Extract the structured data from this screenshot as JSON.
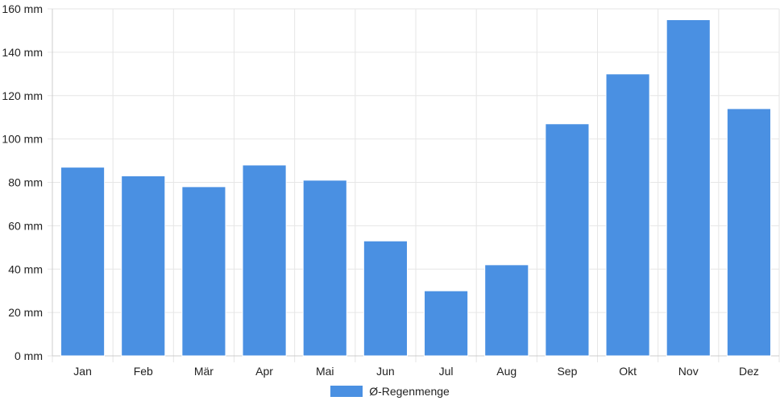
{
  "chart_data": {
    "type": "bar",
    "categories": [
      "Jan",
      "Feb",
      "Mär",
      "Apr",
      "Mai",
      "Jun",
      "Jul",
      "Aug",
      "Sep",
      "Okt",
      "Nov",
      "Dez"
    ],
    "series": [
      {
        "name": "Ø-Regenmenge",
        "values": [
          87,
          83,
          78,
          88,
          81,
          53,
          30,
          42,
          107,
          130,
          155,
          114
        ]
      }
    ],
    "ylim": [
      0,
      160
    ],
    "yticks": [
      0,
      20,
      40,
      60,
      80,
      100,
      120,
      140,
      160
    ],
    "ytick_suffix": " mm",
    "grid": true,
    "legend_position": "bottom",
    "colors": {
      "bar": "#4a90e2",
      "grid": "#e6e6e6",
      "axis": "#cccccc",
      "text": "#222222"
    }
  }
}
